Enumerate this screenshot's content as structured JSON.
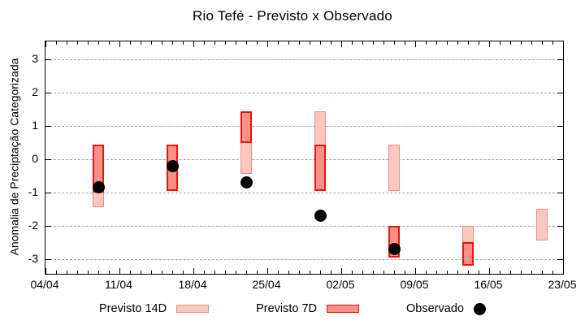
{
  "title": "Rio Tefé - Previsto x Observado",
  "chart_data": {
    "type": "bar",
    "subtype": "forecast range bars with observed scatter points",
    "title": "Rio Tefé - Previsto x Observado",
    "xlabel": "",
    "ylabel": "Anomalia de Preciptação Categorizada",
    "x_tick_labels": [
      "04/04",
      "11/04",
      "18/04",
      "25/04",
      "02/05",
      "09/05",
      "16/05",
      "23/05"
    ],
    "x_axis_span_days": 49,
    "x_major_tick_interval_days": 7,
    "x_minor_tick_interval_days": 1,
    "y_ticks": [
      3,
      2,
      1,
      0,
      -1,
      -2,
      -3
    ],
    "ylim": [
      -3.45,
      3.55
    ],
    "grid": "horizontal dashed gray lines at integer values",
    "legend_position": "bottom-center",
    "bar_width_days": 1.05,
    "series": [
      {
        "name": "Previsto 14D",
        "type": "range-bar",
        "fill": "#fbc8c0",
        "border": "#f0897c",
        "points": [
          {
            "date": "09/04",
            "day": 5,
            "low": -1.45,
            "high": 0.45
          },
          {
            "date": "23/04",
            "day": 19,
            "low": -0.45,
            "high": 1.45
          },
          {
            "date": "30/04",
            "day": 26,
            "low": -0.95,
            "high": 1.45
          },
          {
            "date": "07/05",
            "day": 33,
            "low": -0.95,
            "high": 0.45
          },
          {
            "date": "14/05",
            "day": 40,
            "low": -3.2,
            "high": -2.0
          },
          {
            "date": "21/05",
            "day": 47,
            "low": -2.45,
            "high": -1.5
          }
        ]
      },
      {
        "name": "Previsto 7D",
        "type": "range-bar",
        "fill": "#fa9187",
        "border": "#ee1209",
        "points": [
          {
            "date": "09/04",
            "day": 5,
            "low": -1.0,
            "high": 0.45
          },
          {
            "date": "16/04",
            "day": 12,
            "low": -0.95,
            "high": 0.45
          },
          {
            "date": "23/04",
            "day": 19,
            "low": 0.5,
            "high": 1.45
          },
          {
            "date": "30/04",
            "day": 26,
            "low": -0.95,
            "high": 0.45
          },
          {
            "date": "07/05",
            "day": 33,
            "low": -2.95,
            "high": -2.0
          },
          {
            "date": "14/05",
            "day": 40,
            "low": -3.2,
            "high": -2.5
          }
        ]
      },
      {
        "name": "Observado",
        "type": "scatter",
        "color": "#000000",
        "points": [
          {
            "date": "09/04",
            "day": 5,
            "value": -0.85
          },
          {
            "date": "16/04",
            "day": 12,
            "value": -0.2
          },
          {
            "date": "23/04",
            "day": 19,
            "value": -0.7
          },
          {
            "date": "30/04",
            "day": 26,
            "value": -1.7
          },
          {
            "date": "07/05",
            "day": 33,
            "value": -2.7
          }
        ]
      }
    ]
  },
  "colors": {
    "grid": "#a0a0a0",
    "axis": "#000000",
    "background": "#ffffff",
    "observed": "#000000"
  }
}
